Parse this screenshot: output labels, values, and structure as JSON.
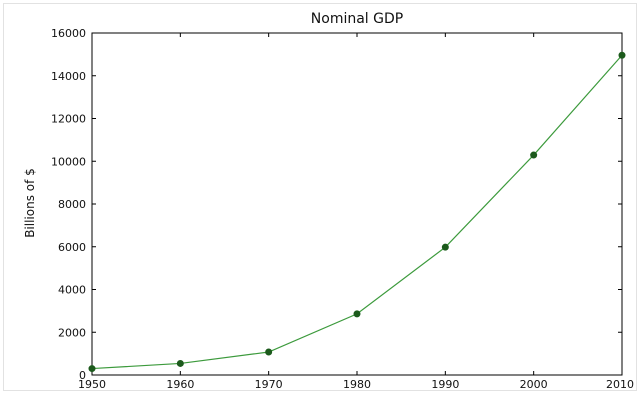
{
  "chart_data": {
    "type": "line",
    "title": "Nominal GDP",
    "xlabel": "",
    "ylabel": "Billions of $",
    "x": [
      1950,
      1960,
      1970,
      1980,
      1990,
      2000,
      2010
    ],
    "series": [
      {
        "values": [
          300,
          540,
          1075,
          2860,
          5980,
          10290,
          14960
        ]
      }
    ],
    "xlim": [
      1950,
      2010
    ],
    "ylim": [
      0,
      16000
    ],
    "xticks": [
      "1950",
      "1960",
      "1970",
      "1980",
      "1990",
      "2000",
      "2010"
    ],
    "yticks": [
      "0",
      "2000",
      "4000",
      "6000",
      "8000",
      "10000",
      "12000",
      "14000",
      "16000"
    ],
    "grid": false,
    "line_color": "#3c9a3c",
    "marker_color": "#1c5a1c"
  }
}
